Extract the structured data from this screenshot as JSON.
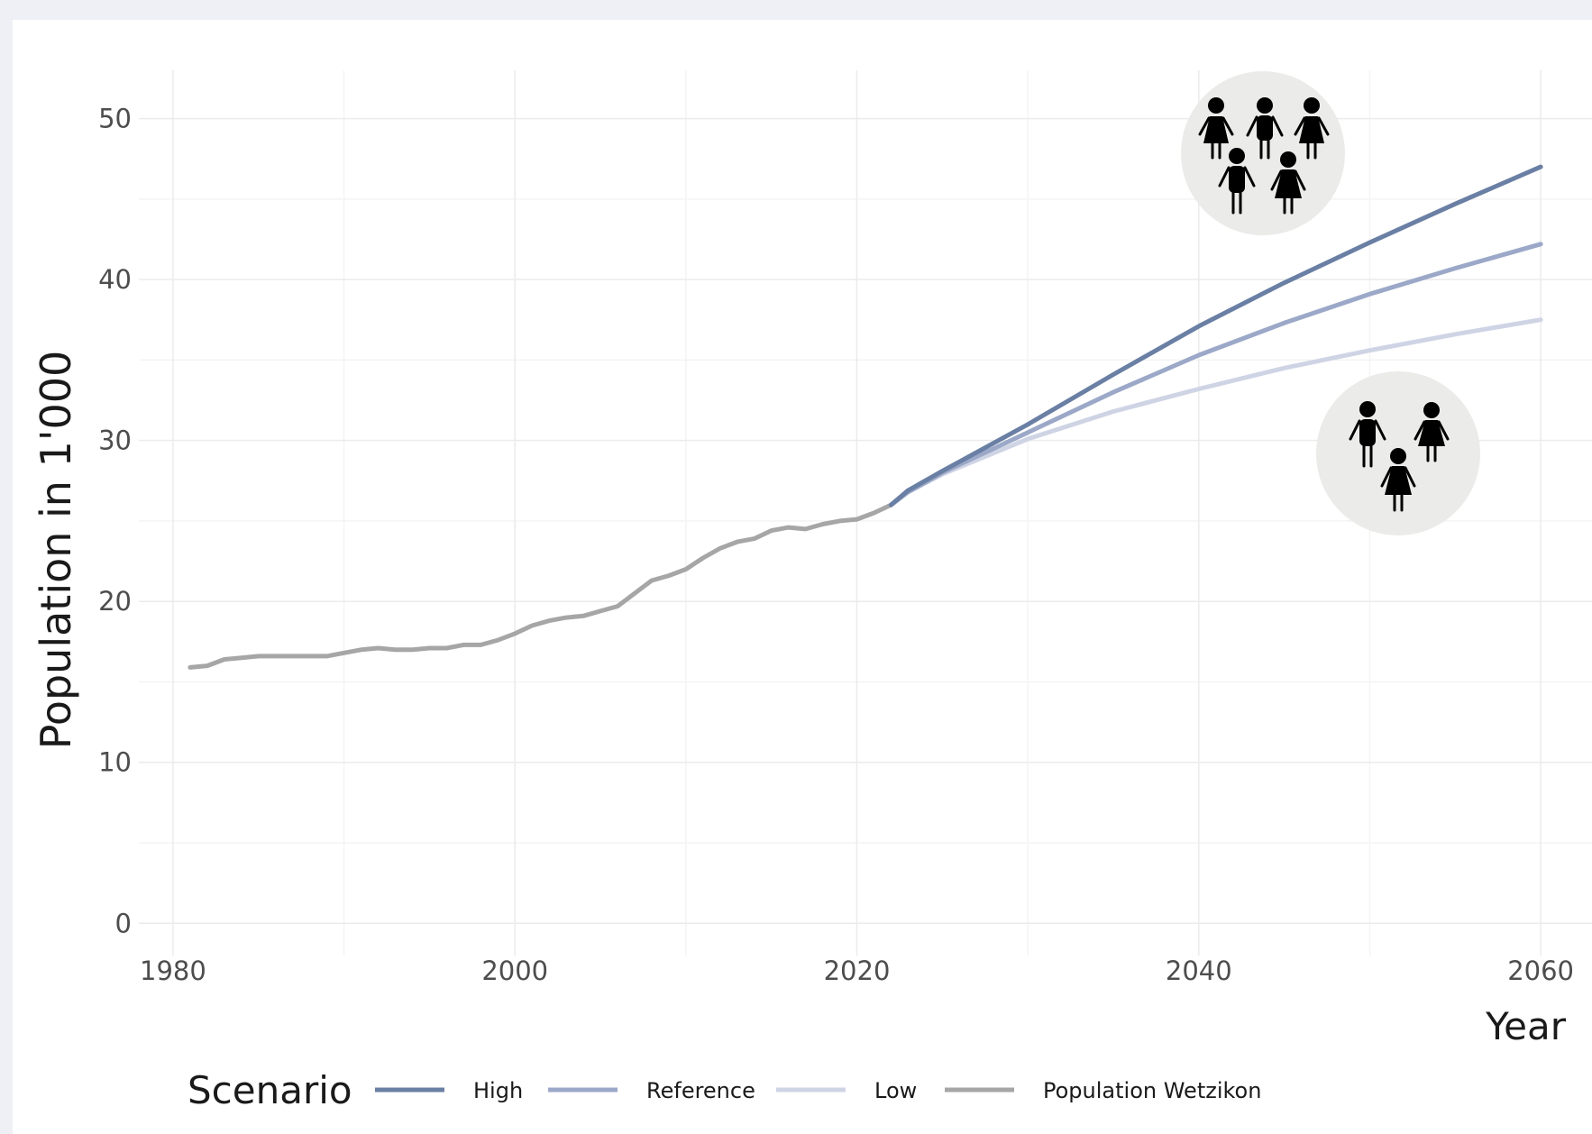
{
  "chart_data": {
    "type": "line",
    "xlabel": "Year",
    "ylabel": "Population in 1'000",
    "xlim": [
      1978,
      2063
    ],
    "ylim": [
      -2,
      53
    ],
    "x_ticks": [
      1980,
      2000,
      2020,
      2040,
      2060
    ],
    "y_ticks": [
      0,
      10,
      20,
      30,
      40,
      50
    ],
    "grid": true,
    "legend_position": "bottom",
    "legend_title": "Scenario",
    "series": [
      {
        "name": "High",
        "color": "#6a7fa4",
        "x": [
          2022,
          2023,
          2025,
          2030,
          2035,
          2040,
          2045,
          2050,
          2055,
          2060
        ],
        "y": [
          26.0,
          26.9,
          28.1,
          31.0,
          34.1,
          37.1,
          39.8,
          42.3,
          44.7,
          47.0
        ]
      },
      {
        "name": "Reference",
        "color": "#9ba8c8",
        "x": [
          2022,
          2023,
          2025,
          2030,
          2035,
          2040,
          2045,
          2050,
          2055,
          2060
        ],
        "y": [
          26.0,
          26.8,
          28.0,
          30.5,
          33.0,
          35.3,
          37.3,
          39.1,
          40.7,
          42.2
        ]
      },
      {
        "name": "Low",
        "color": "#cfd4e5",
        "x": [
          2022,
          2023,
          2025,
          2030,
          2035,
          2040,
          2045,
          2050,
          2055,
          2060
        ],
        "y": [
          26.0,
          26.8,
          27.9,
          30.1,
          31.8,
          33.2,
          34.5,
          35.6,
          36.6,
          37.5
        ]
      },
      {
        "name": "Population Wetzikon",
        "color": "#a6a6a6",
        "x": [
          1981,
          1982,
          1983,
          1984,
          1985,
          1986,
          1987,
          1988,
          1989,
          1990,
          1991,
          1992,
          1993,
          1994,
          1995,
          1996,
          1997,
          1998,
          1999,
          2000,
          2001,
          2002,
          2003,
          2004,
          2005,
          2006,
          2007,
          2008,
          2009,
          2010,
          2011,
          2012,
          2013,
          2014,
          2015,
          2016,
          2017,
          2018,
          2019,
          2020,
          2021,
          2022,
          2023
        ],
        "y": [
          15.9,
          16.0,
          16.4,
          16.5,
          16.6,
          16.6,
          16.6,
          16.6,
          16.6,
          16.8,
          17.0,
          17.1,
          17.0,
          17.0,
          17.1,
          17.1,
          17.3,
          17.3,
          17.6,
          18.0,
          18.5,
          18.8,
          19.0,
          19.1,
          19.4,
          19.7,
          20.5,
          21.3,
          21.6,
          22.0,
          22.7,
          23.3,
          23.7,
          23.9,
          24.4,
          24.6,
          24.5,
          24.8,
          25.0,
          25.1,
          25.5,
          26.0,
          26.9
        ]
      }
    ]
  },
  "icons": {
    "high_group": "group-of-five-people-icon",
    "low_group": "group-of-three-people-icon"
  }
}
